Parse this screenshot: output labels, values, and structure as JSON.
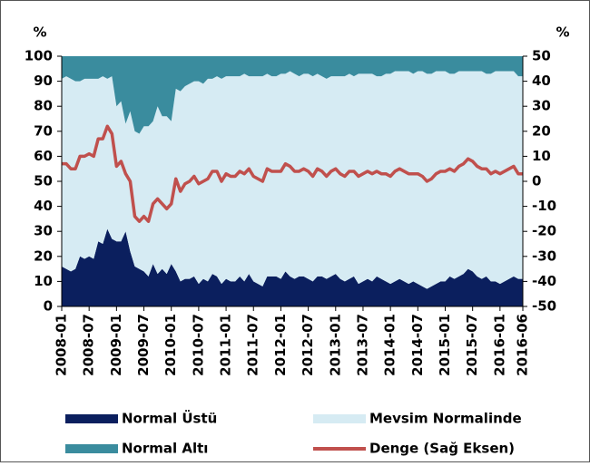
{
  "chart_data": {
    "type": "stacked-area-line",
    "y_unit": "%",
    "y2_unit": "%",
    "categories": [
      "2008-01",
      null,
      null,
      null,
      null,
      null,
      "2008-07",
      null,
      null,
      null,
      null,
      null,
      "2009-01",
      null,
      null,
      null,
      null,
      null,
      "2009-07",
      null,
      null,
      null,
      null,
      null,
      "2010-01",
      null,
      null,
      null,
      null,
      null,
      "2010-07",
      null,
      null,
      null,
      null,
      null,
      "2011-01",
      null,
      null,
      null,
      null,
      null,
      "2011-07",
      null,
      null,
      null,
      null,
      null,
      "2012-01",
      null,
      null,
      null,
      null,
      null,
      "2012-07",
      null,
      null,
      null,
      null,
      null,
      "2013-01",
      null,
      null,
      null,
      null,
      null,
      "2013-07",
      null,
      null,
      null,
      null,
      null,
      "2014-01",
      null,
      null,
      null,
      null,
      null,
      "2014-07",
      null,
      null,
      null,
      null,
      null,
      "2015-01",
      null,
      null,
      null,
      null,
      null,
      "2015-07",
      null,
      null,
      null,
      null,
      null,
      "2016-01",
      null,
      null,
      null,
      null,
      "2016-06"
    ],
    "series": [
      {
        "name": "Normal Üstü",
        "color": "#0b1f5e",
        "values": [
          16,
          15,
          14,
          15,
          20,
          19,
          20,
          19,
          26,
          25,
          31,
          27,
          26,
          26,
          30,
          22,
          16,
          15,
          14,
          12,
          17,
          13,
          15,
          13,
          17,
          14,
          10,
          11,
          11,
          12,
          9,
          11,
          10,
          13,
          12,
          9,
          11,
          10,
          10,
          12,
          10,
          13,
          10,
          9,
          8,
          12,
          12,
          12,
          11,
          14,
          12,
          11,
          12,
          12,
          11,
          10,
          12,
          12,
          11,
          12,
          13,
          11,
          10,
          11,
          12,
          9,
          10,
          11,
          10,
          12,
          11,
          10,
          9,
          10,
          11,
          10,
          9,
          10,
          9,
          8,
          7,
          8,
          9,
          10,
          10,
          12,
          11,
          12,
          13,
          15,
          14,
          12,
          11,
          12,
          10,
          10,
          9,
          10,
          11,
          12,
          11,
          11
        ]
      },
      {
        "name": "Mevsim Normalinde",
        "color": "#d6ebf3",
        "values": [
          75,
          77,
          77,
          75,
          70,
          72,
          71,
          72,
          65,
          67,
          60,
          65,
          54,
          56,
          43,
          56,
          54,
          54,
          58,
          60,
          57,
          67,
          61,
          63,
          57,
          73,
          76,
          77,
          78,
          78,
          81,
          78,
          81,
          78,
          80,
          82,
          81,
          82,
          82,
          80,
          83,
          79,
          82,
          83,
          84,
          81,
          80,
          80,
          82,
          79,
          82,
          82,
          80,
          81,
          82,
          82,
          81,
          80,
          80,
          80,
          79,
          81,
          82,
          82,
          80,
          84,
          83,
          82,
          83,
          80,
          81,
          83,
          84,
          84,
          83,
          84,
          85,
          83,
          85,
          86,
          86,
          85,
          85,
          84,
          84,
          81,
          82,
          82,
          81,
          79,
          80,
          82,
          83,
          81,
          83,
          84,
          85,
          84,
          83,
          82,
          81,
          81
        ]
      },
      {
        "name": "Normal Altı",
        "color": "#3a8c9e",
        "values": [
          9,
          8,
          9,
          10,
          10,
          9,
          9,
          9,
          9,
          8,
          9,
          8,
          20,
          18,
          27,
          22,
          30,
          31,
          28,
          28,
          26,
          20,
          24,
          24,
          26,
          13,
          14,
          12,
          11,
          10,
          10,
          11,
          9,
          9,
          8,
          9,
          8,
          8,
          8,
          8,
          7,
          8,
          8,
          8,
          8,
          7,
          8,
          8,
          7,
          7,
          6,
          7,
          8,
          7,
          7,
          8,
          7,
          8,
          9,
          8,
          8,
          8,
          8,
          7,
          8,
          7,
          7,
          7,
          7,
          8,
          8,
          7,
          7,
          6,
          6,
          6,
          6,
          7,
          6,
          6,
          7,
          7,
          6,
          6,
          6,
          7,
          7,
          6,
          6,
          6,
          6,
          6,
          6,
          7,
          7,
          6,
          6,
          6,
          6,
          6,
          8,
          8
        ]
      },
      {
        "name": "Denge (Sağ Eksen)",
        "color": "#c0504d",
        "axis": "y2",
        "values": [
          7,
          7,
          5,
          5,
          10,
          10,
          11,
          10,
          17,
          17,
          22,
          19,
          6,
          8,
          3,
          0,
          -14,
          -16,
          -14,
          -16,
          -9,
          -7,
          -9,
          -11,
          -9,
          1,
          -4,
          -1,
          0,
          2,
          -1,
          0,
          1,
          4,
          4,
          0,
          3,
          2,
          2,
          4,
          3,
          5,
          2,
          1,
          0,
          5,
          4,
          4,
          4,
          7,
          6,
          4,
          4,
          5,
          4,
          2,
          5,
          4,
          2,
          4,
          5,
          3,
          2,
          4,
          4,
          2,
          3,
          4,
          3,
          4,
          3,
          3,
          2,
          4,
          5,
          4,
          3,
          3,
          3,
          2,
          0,
          1,
          3,
          4,
          4,
          5,
          4,
          6,
          7,
          9,
          8,
          6,
          5,
          5,
          3,
          4,
          3,
          4,
          5,
          6,
          3,
          3
        ]
      }
    ],
    "ylim": [
      0,
      100
    ],
    "yticks": [
      0,
      10,
      20,
      30,
      40,
      50,
      60,
      70,
      80,
      90,
      100
    ],
    "y2lim": [
      -50,
      50
    ],
    "y2ticks": [
      -50,
      -40,
      -30,
      -20,
      -10,
      0,
      10,
      20,
      30,
      40,
      50
    ]
  }
}
